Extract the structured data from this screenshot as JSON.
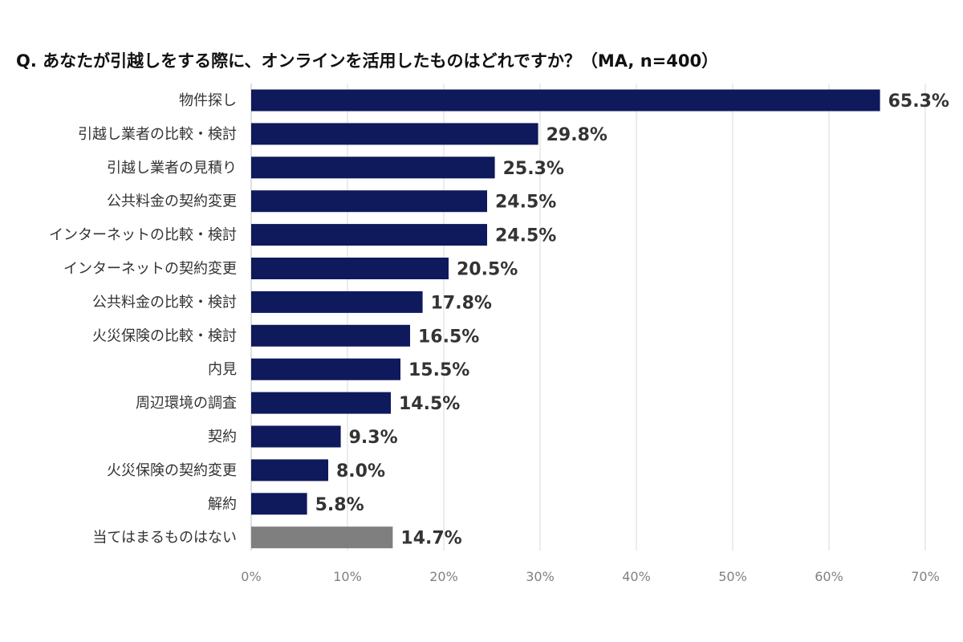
{
  "chart_data": {
    "type": "bar",
    "orientation": "horizontal",
    "title": "Q. あなたが引越しをする際に、オンラインを活用したものはどれですか？（MA, n=400）",
    "categories": [
      "物件探し",
      "引越し業者の比較・検討",
      "引越し業者の見積り",
      "公共料金の契約変更",
      "インターネットの比較・検討",
      "インターネットの契約変更",
      "公共料金の比較・検討",
      "火災保険の比較・検討",
      "内見",
      "周辺環境の調査",
      "契約",
      "火災保険の契約変更",
      "解約",
      "当てはまるものはない"
    ],
    "values": [
      65.3,
      29.8,
      25.3,
      24.5,
      24.5,
      20.5,
      17.8,
      16.5,
      15.5,
      14.5,
      9.3,
      8.0,
      5.8,
      14.7
    ],
    "value_labels": [
      "65.3%",
      "29.8%",
      "25.3%",
      "24.5%",
      "24.5%",
      "20.5%",
      "17.8%",
      "16.5%",
      "15.5%",
      "14.5%",
      "9.3%",
      "8.0%",
      "5.8%",
      "14.7%"
    ],
    "xlim": [
      0,
      70
    ],
    "x_ticks": [
      "0%",
      "10%",
      "20%",
      "30%",
      "40%",
      "50%",
      "60%",
      "70%"
    ],
    "grid": "vertical",
    "legend": "none",
    "colors": {
      "bar": "#0e1a5c",
      "highlight_bar": "#7f7f7f",
      "gridline": "#d9d9d9",
      "axis": "#bfbfbf"
    },
    "highlight_category": "当てはまるものはない"
  }
}
